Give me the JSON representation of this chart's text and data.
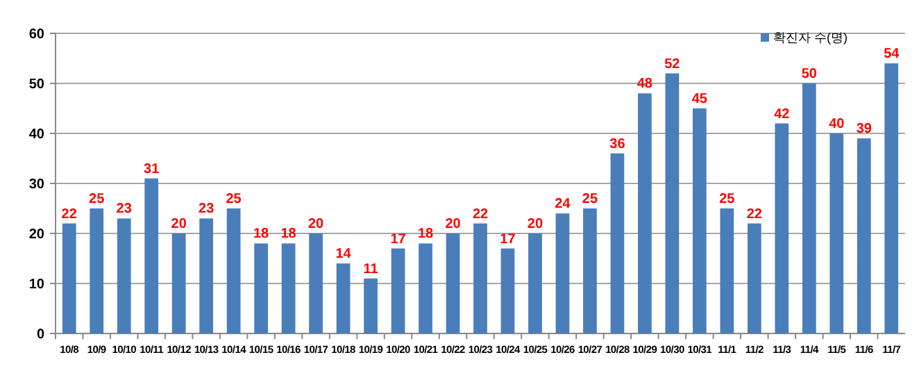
{
  "chart_data": {
    "type": "bar",
    "categories": [
      "10/8",
      "10/9",
      "10/10",
      "10/11",
      "10/12",
      "10/13",
      "10/14",
      "10/15",
      "10/16",
      "10/17",
      "10/18",
      "10/19",
      "10/20",
      "10/21",
      "10/22",
      "10/23",
      "10/24",
      "10/25",
      "10/26",
      "10/27",
      "10/28",
      "10/29",
      "10/30",
      "10/31",
      "11/1",
      "11/2",
      "11/3",
      "11/4",
      "11/5",
      "11/6",
      "11/7"
    ],
    "series": [
      {
        "name": "확진자 수(명)",
        "color": "#4a7ebb",
        "values": [
          22,
          25,
          23,
          31,
          20,
          23,
          25,
          18,
          18,
          20,
          14,
          11,
          17,
          18,
          20,
          22,
          17,
          20,
          24,
          25,
          36,
          48,
          52,
          45,
          25,
          22,
          42,
          50,
          40,
          39,
          54
        ]
      }
    ],
    "ylim": [
      0,
      60
    ],
    "yticks": [
      0,
      10,
      20,
      30,
      40,
      50,
      60
    ],
    "grid": "y",
    "legend": "top right",
    "data_labels": true
  }
}
